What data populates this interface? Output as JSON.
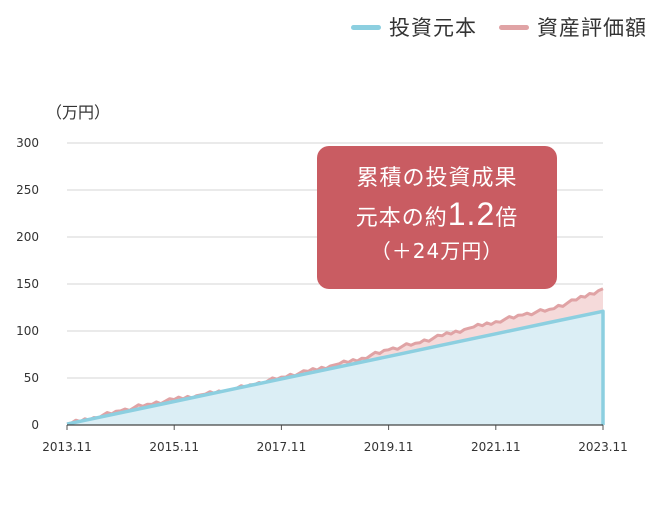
{
  "legend": {
    "principal_label": "投資元本",
    "asset_label": "資産評価額"
  },
  "colors": {
    "principal_line": "#8ccfe0",
    "principal_fill": "#dbeef5",
    "asset_line": "#e0a3a5",
    "asset_fill": "#f5dada",
    "callout_bg": "#c95c62"
  },
  "callout": {
    "line1": "累積の投資成果",
    "line2_prefix": "元本の約",
    "line2_value": "1.2",
    "line2_suffix": "倍",
    "line3": "（＋24万円）"
  },
  "chart_data": {
    "type": "area",
    "unit_label": "（万円）",
    "ylim": [
      0,
      300
    ],
    "yticks": [
      "300",
      "250",
      "200",
      "150",
      "100",
      "50",
      "0"
    ],
    "xticks": [
      "2013.11",
      "2015.11",
      "2017.11",
      "2019.11",
      "2021.11",
      "2023.11"
    ],
    "grid": true,
    "legend_position": "top-right",
    "series": [
      {
        "name": "投資元本",
        "x": [
          "2013.11",
          "2014.11",
          "2015.11",
          "2016.11",
          "2017.11",
          "2018.11",
          "2019.11",
          "2020.11",
          "2021.11",
          "2022.11",
          "2023.11"
        ],
        "values": [
          1,
          13,
          25,
          37,
          49,
          61,
          73,
          85,
          97,
          109,
          121
        ]
      },
      {
        "name": "資産評価額",
        "x": [
          "2013.11",
          "2014.05",
          "2014.11",
          "2015.05",
          "2015.11",
          "2016.05",
          "2016.11",
          "2017.05",
          "2017.11",
          "2018.05",
          "2018.11",
          "2019.05",
          "2019.11",
          "2020.05",
          "2020.11",
          "2021.05",
          "2021.11",
          "2022.05",
          "2022.11",
          "2023.05",
          "2023.11"
        ],
        "values": [
          1,
          8,
          15,
          22,
          27,
          32,
          37,
          43,
          51,
          57,
          64,
          71,
          80,
          87,
          95,
          103,
          110,
          117,
          123,
          133,
          145
        ]
      }
    ]
  }
}
